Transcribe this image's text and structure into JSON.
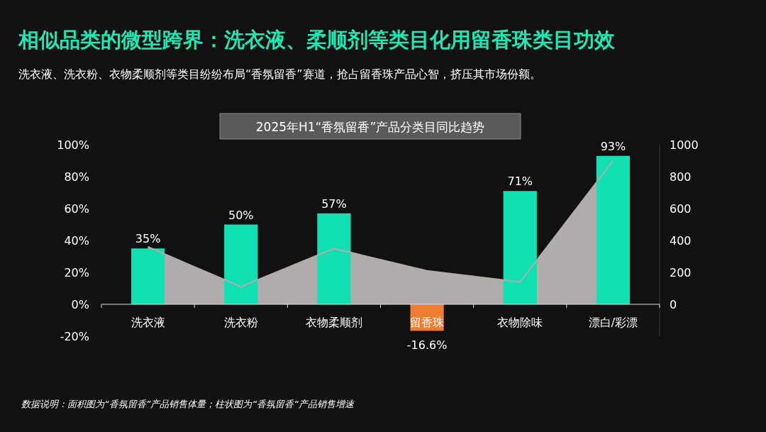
{
  "chart_data": {
    "type": "bar",
    "title": "相似品类的微型跨界：洗衣液、柔顺剂等类目化用留香珠类目功效",
    "subtitle": "洗衣液、洗衣粉、衣物柔顺剂等类目纷纷布局“香氛留香”赛道，抢占留香珠产品心智，挤压其市场份额。",
    "annotations": [
      "2025年H1“香氛留香”产品分类目同比趋势",
      "数据说明：面积图为“香氛留香”产品销售体量；柱状图为“香氛留香“产品销售增速"
    ],
    "categories": [
      "洗衣液",
      "洗衣粉",
      "衣物柔顺剂",
      "留香珠",
      "衣物除味",
      "漂白/彩漂"
    ],
    "series": [
      {
        "type": "area",
        "axis": "y2",
        "color": "#b1acab",
        "values": [
          360,
          110,
          350,
          210,
          140,
          900
        ]
      },
      {
        "colors": [
          "#10e0b2",
          "#10e0b2",
          "#10e0b2",
          "#ed7d31",
          "#10e0b2",
          "#10e0b2"
        ],
        "values": [
          35,
          50,
          57,
          -16.6,
          71,
          93
        ],
        "value_labels": [
          "35%",
          "50%",
          "57%",
          "-16.6%",
          "71%",
          "93%"
        ]
      }
    ],
    "ylim": [
      -20,
      100
    ],
    "yticks": [
      {
        "value": -20,
        "label": "-20%"
      },
      {
        "value": 0,
        "label": "0%"
      },
      {
        "value": 20,
        "label": "20%"
      },
      {
        "value": 40,
        "label": "40%"
      },
      {
        "value": 60,
        "label": "60%"
      },
      {
        "value": 80,
        "label": "80%"
      },
      {
        "value": 100,
        "label": "100%"
      }
    ],
    "y2lim": [
      -200,
      1000
    ],
    "y2ticks": [
      0,
      200,
      400,
      600,
      800,
      1000
    ],
    "grid": false
  }
}
